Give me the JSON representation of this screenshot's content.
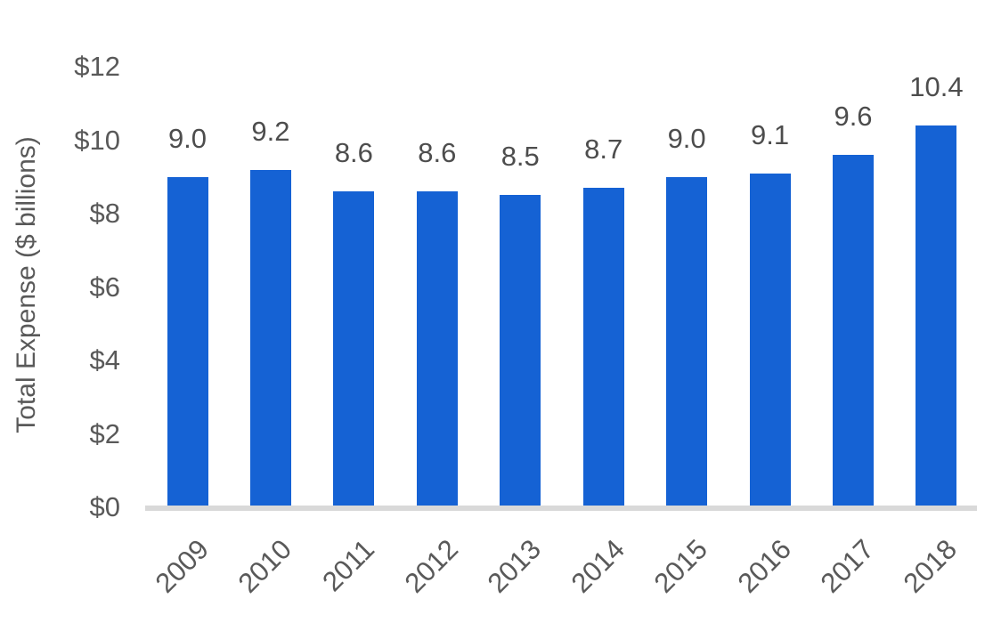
{
  "chart_data": {
    "type": "bar",
    "title": "",
    "categories": [
      "2009",
      "2010",
      "2011",
      "2012",
      "2013",
      "2014",
      "2015",
      "2016",
      "2017",
      "2018"
    ],
    "values": [
      9.0,
      9.2,
      8.6,
      8.6,
      8.5,
      8.7,
      9.0,
      9.1,
      9.6,
      10.4
    ],
    "value_labels": [
      "9.0",
      "9.2",
      "8.6",
      "8.6",
      "8.5",
      "8.7",
      "9.0",
      "9.1",
      "9.6",
      "10.4"
    ],
    "xlabel": "",
    "ylabel": "Total Expense ($ billions)",
    "ylim": [
      0,
      12
    ],
    "y_ticks": [
      {
        "value": 0,
        "label": "$0"
      },
      {
        "value": 2,
        "label": "$2"
      },
      {
        "value": 4,
        "label": "$4"
      },
      {
        "value": 6,
        "label": "$6"
      },
      {
        "value": 8,
        "label": "$8"
      },
      {
        "value": 10,
        "label": "$10"
      },
      {
        "value": 12,
        "label": "$12"
      }
    ],
    "grid": "off",
    "legend": "none",
    "colors": {
      "bar": "#1562d4",
      "axis_line": "#d9d9d9",
      "tick_text": "#595959",
      "value_text": "#4d4d4d",
      "background": "#ffffff"
    }
  }
}
